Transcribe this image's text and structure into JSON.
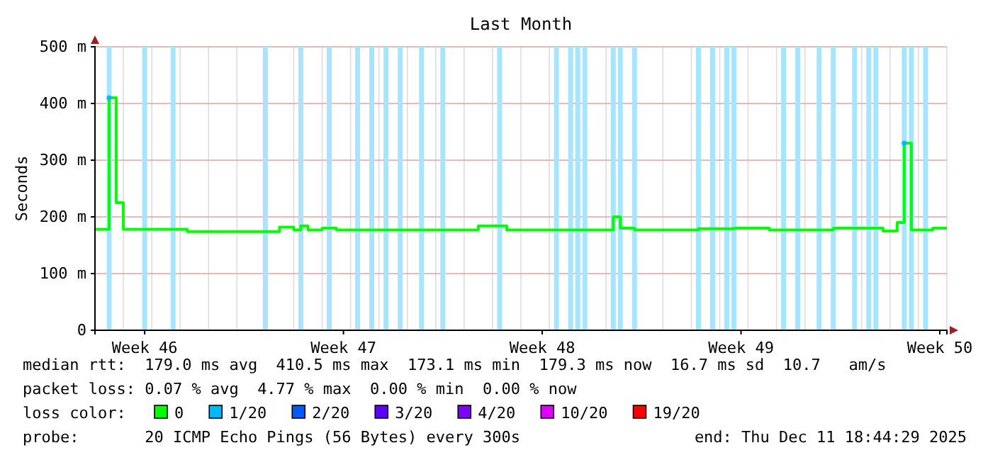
{
  "chart_data": {
    "type": "step",
    "title": "Last Month",
    "ylabel": "Seconds",
    "legend_title": "loss color:",
    "categories": [
      null,
      null,
      null,
      null,
      null,
      null,
      null,
      "Week 46",
      null,
      null,
      null,
      null,
      null,
      null,
      null,
      null,
      null,
      null,
      null,
      null,
      null,
      null,
      null,
      null,
      null,
      null,
      null,
      null,
      null,
      null,
      null,
      null,
      null,
      null,
      null,
      "Week 47",
      null,
      null,
      null,
      null,
      null,
      null,
      null,
      null,
      null,
      null,
      null,
      null,
      null,
      null,
      null,
      null,
      null,
      null,
      null,
      null,
      null,
      null,
      null,
      null,
      null,
      null,
      null,
      "Week 48",
      null,
      null,
      null,
      null,
      null,
      null,
      null,
      null,
      null,
      null,
      null,
      null,
      null,
      null,
      null,
      null,
      null,
      null,
      null,
      null,
      null,
      null,
      null,
      null,
      null,
      null,
      null,
      "Week 49",
      null,
      null,
      null,
      null,
      null,
      null,
      null,
      null,
      null,
      null,
      null,
      null,
      null,
      null,
      null,
      null,
      null,
      null,
      null,
      null,
      null,
      null,
      null,
      null,
      null,
      null,
      null,
      "Week 50",
      null
    ],
    "ylim": [
      0,
      500
    ],
    "yticks": [
      {
        "value": 0,
        "label": "0"
      },
      {
        "value": 100,
        "label": "100 m"
      },
      {
        "value": 200,
        "label": "200 m"
      },
      {
        "value": 300,
        "label": "300 m"
      },
      {
        "value": 400,
        "label": "400 m"
      },
      {
        "value": 500,
        "label": "500 m"
      }
    ],
    "grid": true,
    "legend": "bottom",
    "series": [
      {
        "color": "#a6e4ff",
        "type": "bar",
        "values": [
          null,
          null,
          500,
          null,
          null,
          null,
          null,
          500,
          null,
          null,
          null,
          500,
          null,
          null,
          null,
          null,
          null,
          null,
          null,
          null,
          null,
          null,
          null,
          null,
          500,
          null,
          null,
          null,
          null,
          500,
          null,
          null,
          null,
          500,
          null,
          null,
          null,
          500,
          null,
          500,
          null,
          500,
          null,
          500,
          null,
          null,
          500,
          null,
          null,
          500,
          null,
          null,
          null,
          null,
          null,
          null,
          null,
          500,
          null,
          null,
          null,
          null,
          null,
          null,
          null,
          500,
          null,
          500,
          500,
          500,
          null,
          null,
          null,
          500,
          500,
          null,
          500,
          null,
          null,
          null,
          null,
          null,
          null,
          null,
          null,
          500,
          null,
          500,
          null,
          500,
          500,
          null,
          null,
          null,
          null,
          null,
          null,
          500,
          null,
          500,
          null,
          null,
          500,
          null,
          500,
          null,
          null,
          500,
          null,
          500,
          500,
          null,
          null,
          null,
          500,
          500,
          null,
          500,
          null,
          null,
          null
        ]
      },
      {
        "name": "0",
        "color": "#00ff00",
        "values": [
          178,
          178,
          410,
          225,
          178,
          178,
          178,
          178,
          178,
          178,
          178,
          178,
          178,
          174,
          174,
          174,
          174,
          174,
          174,
          174,
          174,
          174,
          174,
          174,
          174,
          174,
          182,
          182,
          177,
          184,
          177,
          177,
          180,
          180,
          177,
          177,
          177,
          177,
          177,
          177,
          177,
          177,
          177,
          177,
          177,
          177,
          177,
          177,
          177,
          177,
          177,
          177,
          177,
          177,
          184,
          184,
          184,
          184,
          177,
          177,
          177,
          177,
          177,
          177,
          177,
          177,
          177,
          177,
          177,
          177,
          177,
          177,
          177,
          200,
          180,
          180,
          177,
          177,
          177,
          177,
          177,
          177,
          177,
          177,
          177,
          179,
          179,
          179,
          179,
          179,
          180,
          180,
          180,
          180,
          180,
          177,
          177,
          177,
          177,
          177,
          177,
          177,
          177,
          177,
          180,
          180,
          180,
          180,
          180,
          180,
          180,
          175,
          175,
          190,
          330,
          177,
          177,
          177,
          180,
          180,
          180
        ]
      },
      {
        "name": "1/20",
        "color": "#00b8ff",
        "type": "scatter",
        "values": [
          null,
          null,
          410,
          null,
          null,
          null,
          null,
          null,
          null,
          null,
          null,
          null,
          null,
          null,
          null,
          null,
          null,
          null,
          null,
          null,
          null,
          null,
          null,
          null,
          null,
          null,
          null,
          null,
          null,
          null,
          null,
          null,
          null,
          null,
          null,
          null,
          null,
          null,
          null,
          null,
          null,
          null,
          null,
          null,
          null,
          null,
          null,
          null,
          null,
          null,
          null,
          null,
          null,
          null,
          null,
          null,
          null,
          null,
          null,
          null,
          null,
          null,
          null,
          null,
          null,
          null,
          null,
          null,
          null,
          null,
          null,
          null,
          null,
          null,
          null,
          null,
          null,
          null,
          null,
          null,
          null,
          null,
          null,
          null,
          null,
          null,
          null,
          null,
          null,
          null,
          null,
          null,
          null,
          null,
          null,
          null,
          null,
          null,
          null,
          null,
          null,
          null,
          null,
          null,
          null,
          null,
          null,
          null,
          null,
          null,
          null,
          null,
          null,
          null,
          330,
          null,
          null,
          null,
          null,
          null,
          null
        ]
      },
      {
        "name": "2/20",
        "color": "#0059ff",
        "type": "scatter",
        "values": [
          null,
          null,
          null,
          null,
          null,
          null,
          null,
          null,
          null,
          null,
          null,
          null,
          null,
          null,
          null,
          null,
          null,
          null,
          null,
          null,
          null,
          null,
          null,
          null,
          null,
          null,
          null,
          null,
          null,
          null,
          null,
          null,
          null,
          null,
          null,
          null,
          null,
          null,
          null,
          null,
          null,
          null,
          null,
          null,
          null,
          null,
          null,
          null,
          null,
          null,
          null,
          null,
          null,
          null,
          null,
          null,
          null,
          null,
          null,
          null,
          null,
          null,
          null,
          null,
          null,
          null,
          null,
          null,
          null,
          null,
          null,
          null,
          null,
          null,
          null,
          null,
          null,
          null,
          null,
          null,
          null,
          null,
          null,
          null,
          null,
          null,
          null,
          null,
          null,
          null,
          null,
          null,
          null,
          null,
          null,
          null,
          null,
          null,
          null,
          null,
          null,
          null,
          null,
          null,
          null,
          null,
          null,
          null,
          null,
          null,
          null,
          null,
          null,
          null,
          null,
          null,
          null,
          null,
          null,
          null,
          null
        ]
      },
      {
        "name": "3/20",
        "color": "#5e00ff",
        "type": "scatter",
        "values": [
          null,
          null,
          null,
          null,
          null,
          null,
          null,
          null,
          null,
          null,
          null,
          null,
          null,
          null,
          null,
          null,
          null,
          null,
          null,
          null,
          null,
          null,
          null,
          null,
          null,
          null,
          null,
          null,
          null,
          null,
          null,
          null,
          null,
          null,
          null,
          null,
          null,
          null,
          null,
          null,
          null,
          null,
          null,
          null,
          null,
          null,
          null,
          null,
          null,
          null,
          null,
          null,
          null,
          null,
          null,
          null,
          null,
          null,
          null,
          null,
          null,
          null,
          null,
          null,
          null,
          null,
          null,
          null,
          null,
          null,
          null,
          null,
          null,
          null,
          null,
          null,
          null,
          null,
          null,
          null,
          null,
          null,
          null,
          null,
          null,
          null,
          null,
          null,
          null,
          null,
          null,
          null,
          null,
          null,
          null,
          null,
          null,
          null,
          null,
          null,
          null,
          null,
          null,
          null,
          null,
          null,
          null,
          null,
          null,
          null,
          null,
          null,
          null,
          null,
          null,
          null,
          null,
          null,
          null,
          null,
          null
        ]
      },
      {
        "name": "4/20",
        "color": "#7e00ff",
        "type": "scatter",
        "values": [
          null,
          null,
          null,
          null,
          null,
          null,
          null,
          null,
          null,
          null,
          null,
          null,
          null,
          null,
          null,
          null,
          null,
          null,
          null,
          null,
          null,
          null,
          null,
          null,
          null,
          null,
          null,
          null,
          null,
          null,
          null,
          null,
          null,
          null,
          null,
          null,
          null,
          null,
          null,
          null,
          null,
          null,
          null,
          null,
          null,
          null,
          null,
          null,
          null,
          null,
          null,
          null,
          null,
          null,
          null,
          null,
          null,
          null,
          null,
          null,
          null,
          null,
          null,
          null,
          null,
          null,
          null,
          null,
          null,
          null,
          null,
          null,
          null,
          null,
          null,
          null,
          null,
          null,
          null,
          null,
          null,
          null,
          null,
          null,
          null,
          null,
          null,
          null,
          null,
          null,
          null,
          null,
          null,
          null,
          null,
          null,
          null,
          null,
          null,
          null,
          null,
          null,
          null,
          null,
          null,
          null,
          null,
          null,
          null,
          null,
          null,
          null,
          null,
          null,
          null,
          null,
          null,
          null,
          null,
          null,
          null
        ]
      },
      {
        "name": "10/20",
        "color": "#dd00ff",
        "type": "scatter",
        "values": [
          null,
          null,
          null,
          null,
          null,
          null,
          null,
          null,
          null,
          null,
          null,
          null,
          null,
          null,
          null,
          null,
          null,
          null,
          null,
          null,
          null,
          null,
          null,
          null,
          null,
          null,
          null,
          null,
          null,
          null,
          null,
          null,
          null,
          null,
          null,
          null,
          null,
          null,
          null,
          null,
          null,
          null,
          null,
          null,
          null,
          null,
          null,
          null,
          null,
          null,
          null,
          null,
          null,
          null,
          null,
          null,
          null,
          null,
          null,
          null,
          null,
          null,
          null,
          null,
          null,
          null,
          null,
          null,
          null,
          null,
          null,
          null,
          null,
          null,
          null,
          null,
          null,
          null,
          null,
          null,
          null,
          null,
          null,
          null,
          null,
          null,
          null,
          null,
          null,
          null,
          null,
          null,
          null,
          null,
          null,
          null,
          null,
          null,
          null,
          null,
          null,
          null,
          null,
          null,
          null,
          null,
          null,
          null,
          null,
          null,
          null,
          null,
          null,
          null,
          null,
          null,
          null,
          null,
          null,
          null,
          null
        ]
      },
      {
        "name": "19/20",
        "color": "#ff0000",
        "type": "scatter",
        "values": [
          null,
          null,
          null,
          null,
          null,
          null,
          null,
          null,
          null,
          null,
          null,
          null,
          null,
          null,
          null,
          null,
          null,
          null,
          null,
          null,
          null,
          null,
          null,
          null,
          null,
          null,
          null,
          null,
          null,
          null,
          null,
          null,
          null,
          null,
          null,
          null,
          null,
          null,
          null,
          null,
          null,
          null,
          null,
          null,
          null,
          null,
          null,
          null,
          null,
          null,
          null,
          null,
          null,
          null,
          null,
          null,
          null,
          null,
          null,
          null,
          null,
          null,
          null,
          null,
          null,
          null,
          null,
          null,
          null,
          null,
          null,
          null,
          null,
          null,
          null,
          null,
          null,
          null,
          null,
          null,
          null,
          null,
          null,
          null,
          null,
          null,
          null,
          null,
          null,
          null,
          null,
          null,
          null,
          null,
          null,
          null,
          null,
          null,
          null,
          null,
          null,
          null,
          null,
          null,
          null,
          null,
          null,
          null,
          null,
          null,
          null,
          null,
          null,
          null,
          null,
          null,
          null,
          null,
          null,
          null,
          null
        ]
      }
    ],
    "annotations": [
      "median rtt:  179.0 ms avg  410.5 ms max  173.1 ms min  179.3 ms now  16.7 ms sd  10.7   am/s",
      "packet loss: 0.07 % avg  4.77 % max  0.00 % min  0.00 % now",
      "probe:       20 ICMP Echo Pings (56 Bytes) every 300s",
      "end: Thu Dec 11 18:44:29 2025"
    ]
  }
}
